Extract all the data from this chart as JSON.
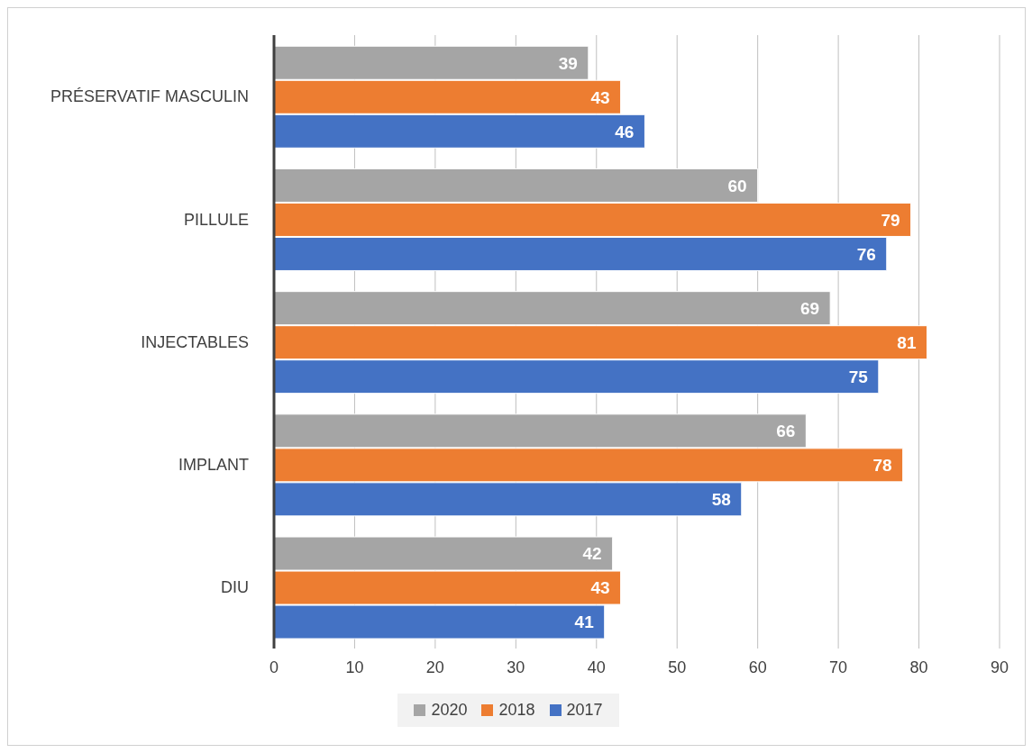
{
  "chart_data": {
    "type": "bar",
    "orientation": "horizontal",
    "categories": [
      "PRÉSERVATIF MASCULIN",
      "PILLULE",
      "INJECTABLES",
      "IMPLANT",
      "DIU"
    ],
    "series": [
      {
        "name": "2020",
        "color": "#a5a5a5",
        "values": [
          39,
          60,
          69,
          66,
          42
        ]
      },
      {
        "name": "2018",
        "color": "#ed7d31",
        "values": [
          43,
          79,
          81,
          78,
          43
        ]
      },
      {
        "name": "2017",
        "color": "#4472c4",
        "values": [
          46,
          76,
          75,
          58,
          41
        ]
      }
    ],
    "xlim": [
      0,
      90
    ],
    "xticks": [
      0,
      10,
      20,
      30,
      40,
      50,
      60,
      70,
      80,
      90
    ],
    "grid": "x",
    "legend": "bottom",
    "data_labels": true
  }
}
